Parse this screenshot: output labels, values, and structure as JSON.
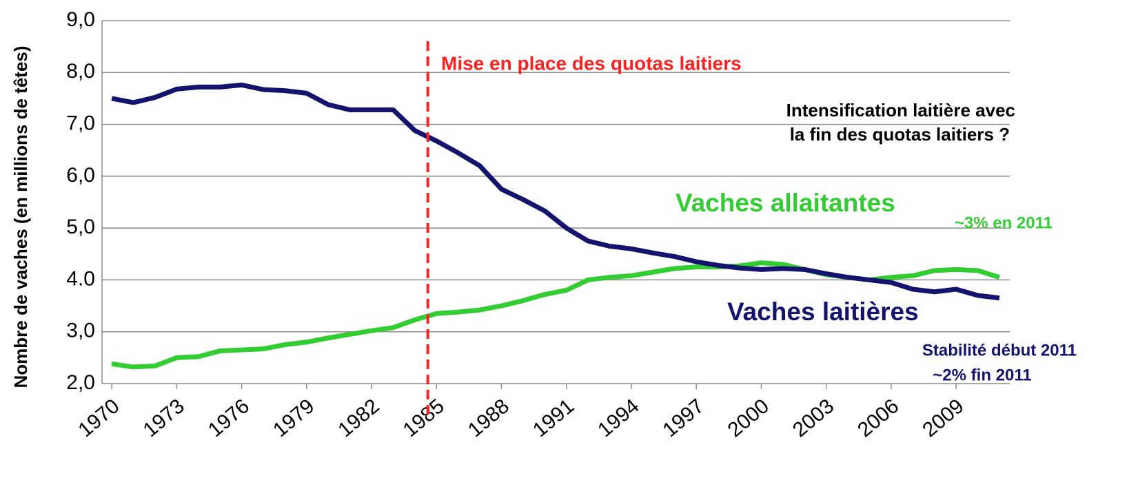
{
  "chart_data": {
    "type": "line",
    "y_label": "Nombre de vaches (en millions de têtes)",
    "x": [
      1970,
      1971,
      1972,
      1973,
      1974,
      1975,
      1976,
      1977,
      1978,
      1979,
      1980,
      1981,
      1982,
      1983,
      1984,
      1985,
      1986,
      1987,
      1988,
      1989,
      1990,
      1991,
      1992,
      1993,
      1994,
      1995,
      1996,
      1997,
      1998,
      1999,
      2000,
      2001,
      2002,
      2003,
      2004,
      2005,
      2006,
      2007,
      2008,
      2009,
      2010,
      2011
    ],
    "series": [
      {
        "name": "Vaches allaitantes",
        "color": "#33cc33",
        "values": [
          2.38,
          2.32,
          2.34,
          2.5,
          2.52,
          2.63,
          2.65,
          2.67,
          2.75,
          2.8,
          2.88,
          2.95,
          3.02,
          3.08,
          3.23,
          3.35,
          3.38,
          3.42,
          3.5,
          3.6,
          3.72,
          3.8,
          4.0,
          4.05,
          4.08,
          4.15,
          4.22,
          4.25,
          4.25,
          4.27,
          4.33,
          4.3,
          4.2,
          4.1,
          4.05,
          4.0,
          4.05,
          4.08,
          4.18,
          4.2,
          4.18,
          4.05
        ]
      },
      {
        "name": "Vaches laitières",
        "color": "#14146e",
        "values": [
          7.5,
          7.42,
          7.52,
          7.68,
          7.72,
          7.72,
          7.76,
          7.67,
          7.65,
          7.6,
          7.38,
          7.28,
          7.28,
          7.28,
          6.88,
          6.68,
          6.45,
          6.2,
          5.75,
          5.55,
          5.33,
          5.0,
          4.75,
          4.65,
          4.6,
          4.52,
          4.45,
          4.35,
          4.28,
          4.23,
          4.2,
          4.22,
          4.2,
          4.12,
          4.05,
          4.0,
          3.95,
          3.82,
          3.77,
          3.82,
          3.7,
          3.65
        ]
      }
    ],
    "xlim": [
      1969.55,
      2011.48
    ],
    "xticks": [
      1970,
      1973,
      1976,
      1979,
      1982,
      1985,
      1988,
      1991,
      1994,
      1997,
      2000,
      2003,
      2006,
      2009
    ],
    "ylim": [
      2.0,
      9.0
    ],
    "yticks": [
      {
        "value": 2.0,
        "label": "2,0"
      },
      {
        "value": 3.0,
        "label": "3,0"
      },
      {
        "value": 4.0,
        "label": "4.0"
      },
      {
        "value": 5.0,
        "label": "5,0"
      },
      {
        "value": 6.0,
        "label": "6,0"
      },
      {
        "value": 7.0,
        "label": "7,0"
      },
      {
        "value": 8.0,
        "label": "8,0"
      },
      {
        "value": 9.0,
        "label": "9,0"
      }
    ],
    "grid": true,
    "vline": {
      "x": 1984.6,
      "color": "#ff2020",
      "label": "Mise en place des quotas laitiers"
    },
    "annotations": [
      {
        "text": "Intensification laitière avec",
        "color": "#000000"
      },
      {
        "text": "la fin des quotas laitiers ?",
        "color": "#000000"
      },
      {
        "text": "~3% en 2011",
        "color": "#33cc33"
      },
      {
        "text": "Stabilité début 2011",
        "color": "#14146e"
      },
      {
        "text": "~2% fin 2011",
        "color": "#14146e"
      }
    ]
  }
}
